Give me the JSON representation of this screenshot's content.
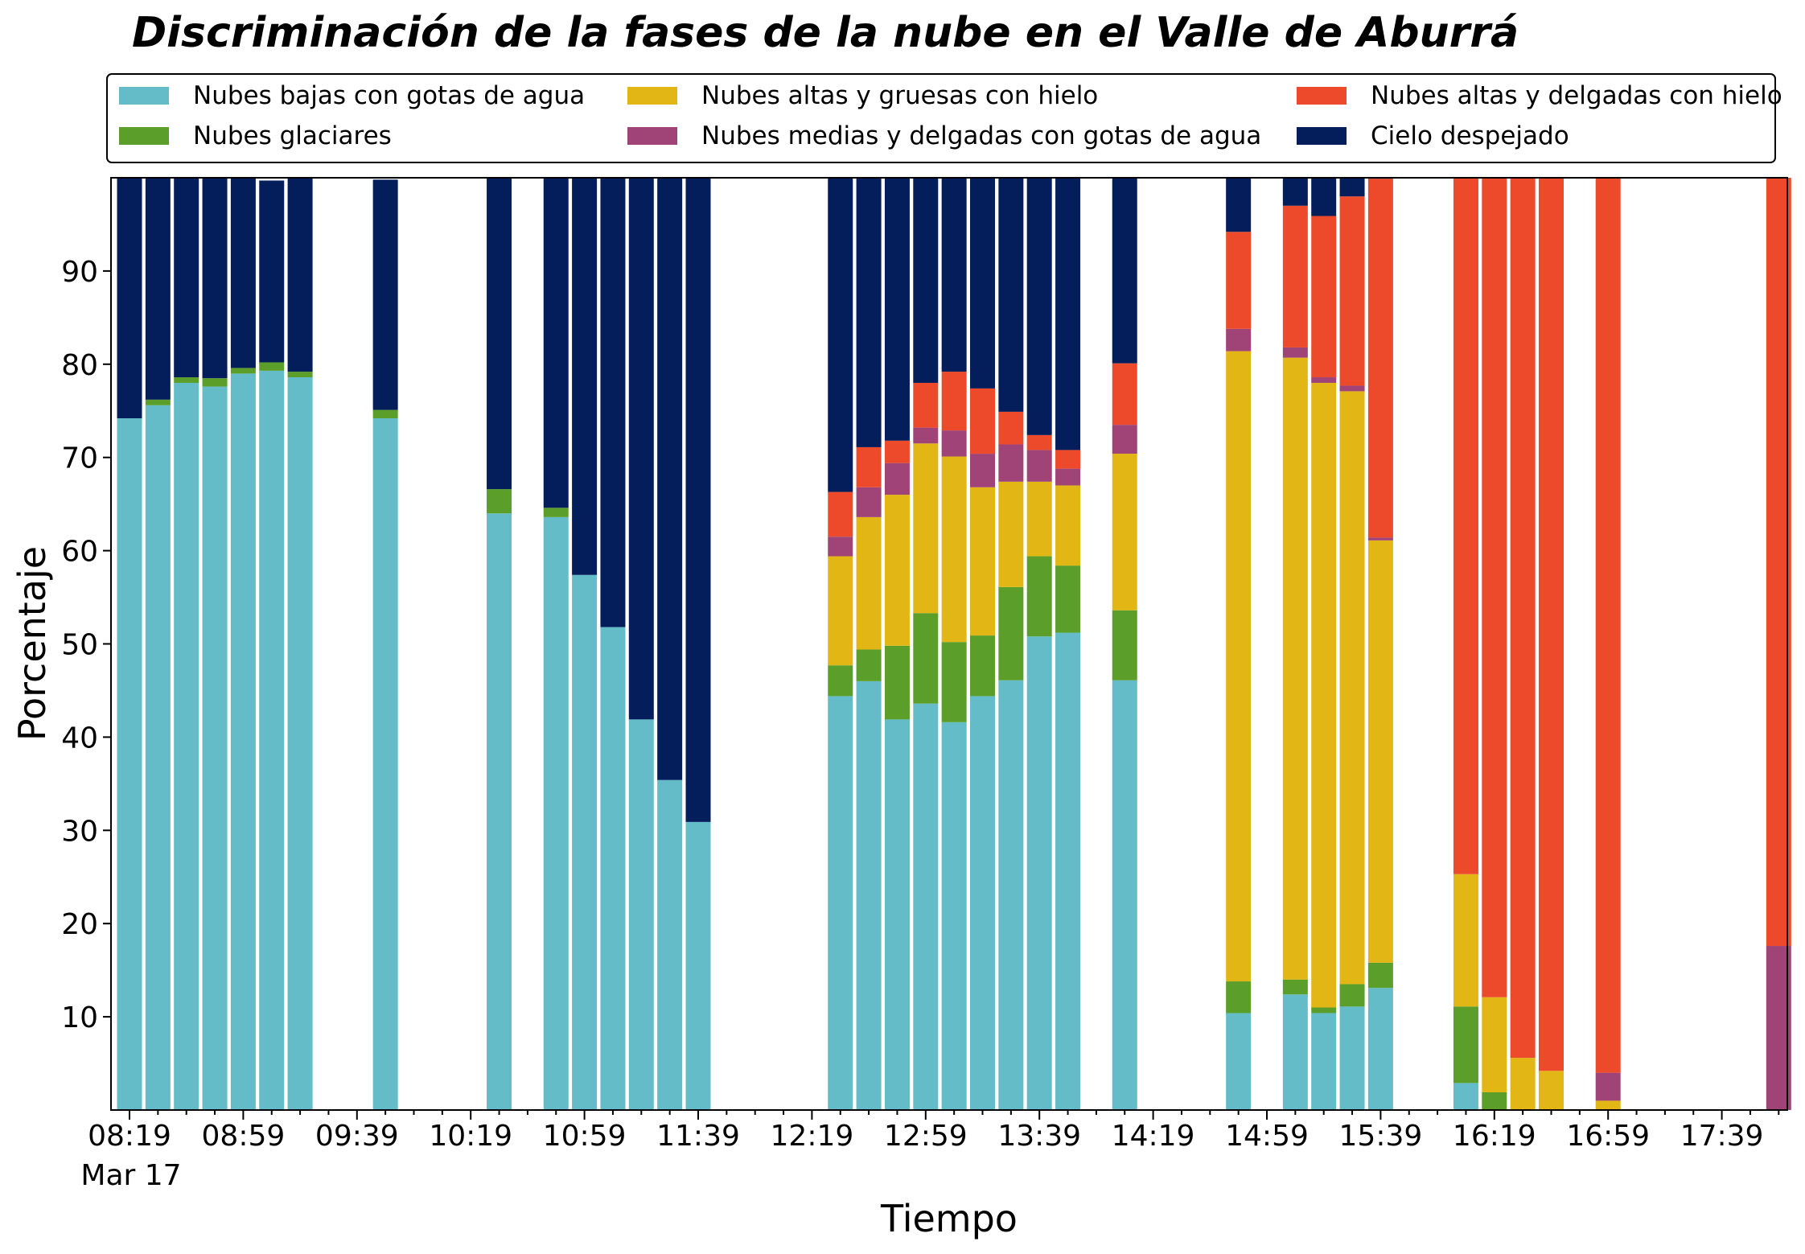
{
  "chart_data": {
    "type": "bar",
    "stacked": true,
    "title": "Discriminación de la fases de la nube en el Valle de Aburrá",
    "xlabel": "Tiempo",
    "ylabel": "Porcentaje",
    "ylim": [
      0,
      100
    ],
    "yticks": [
      10,
      20,
      30,
      40,
      50,
      60,
      70,
      80,
      90
    ],
    "x_tick_labels": [
      "08:19",
      "08:59",
      "09:39",
      "10:19",
      "10:59",
      "11:39",
      "12:19",
      "12:59",
      "13:39",
      "14:19",
      "14:59",
      "15:39",
      "16:19",
      "16:59",
      "17:39"
    ],
    "x_date_label": "Mar 17",
    "legend_position": "top",
    "categories": [
      "08:19",
      "08:29",
      "08:39",
      "08:49",
      "08:59",
      "09:09",
      "09:19",
      "09:29",
      "09:39",
      "09:49",
      "09:59",
      "10:09",
      "10:19",
      "10:29",
      "10:39",
      "10:49",
      "10:59",
      "11:09",
      "11:19",
      "11:29",
      "11:39",
      "11:49",
      "11:59",
      "12:09",
      "12:19",
      "12:29",
      "12:39",
      "12:49",
      "12:59",
      "13:09",
      "13:19",
      "13:29",
      "13:39",
      "13:49",
      "13:59",
      "14:09",
      "14:19",
      "14:29",
      "14:39",
      "14:49",
      "14:59",
      "15:09",
      "15:19",
      "15:29",
      "15:39",
      "15:49",
      "15:59",
      "16:09",
      "16:19",
      "16:29",
      "16:39",
      "16:49",
      "16:59",
      "17:09",
      "17:19",
      "17:29",
      "17:39",
      "17:49",
      "17:59"
    ],
    "series": [
      {
        "name": "Nubes bajas con gotas de agua",
        "color": "#64bcc8",
        "values": [
          74.2,
          75.6,
          78,
          77.6,
          79,
          79.3,
          78.6,
          null,
          null,
          74.2,
          null,
          null,
          null,
          64,
          null,
          63.6,
          57.4,
          51.8,
          41.9,
          35.4,
          30.9,
          null,
          null,
          null,
          null,
          44.4,
          46,
          41.9,
          43.6,
          41.6,
          44.4,
          46.1,
          50.8,
          51.2,
          null,
          46.1,
          null,
          null,
          null,
          10.4,
          null,
          12.4,
          10.4,
          11.1,
          13.1,
          null,
          null,
          2.9,
          0,
          0,
          0,
          null,
          0,
          null,
          null,
          null,
          null,
          null,
          0
        ]
      },
      {
        "name": "Nubes glaciares",
        "color": "#5b9e2a",
        "values": [
          0,
          0.6,
          0.6,
          0.9,
          0.6,
          0.9,
          0.6,
          null,
          null,
          0.9,
          null,
          null,
          null,
          2.6,
          null,
          1,
          0,
          0,
          0,
          0,
          0,
          null,
          null,
          null,
          null,
          3.3,
          3.4,
          7.9,
          9.7,
          8.6,
          6.5,
          10,
          8.6,
          7.2,
          null,
          7.5,
          null,
          null,
          null,
          3.4,
          null,
          1.6,
          0.6,
          2.4,
          2.7,
          null,
          null,
          8.2,
          1.9,
          0,
          0,
          null,
          0,
          null,
          null,
          null,
          null,
          null,
          0
        ]
      },
      {
        "name": "Nubes altas y gruesas con hielo",
        "color": "#e2b614",
        "values": [
          0,
          0,
          0,
          0,
          0,
          0,
          0,
          null,
          null,
          0,
          null,
          null,
          null,
          0,
          null,
          0,
          0,
          0,
          0,
          0,
          0,
          null,
          null,
          null,
          null,
          11.7,
          14.2,
          16.2,
          18.2,
          19.9,
          15.9,
          11.3,
          8,
          8.6,
          null,
          16.8,
          null,
          null,
          null,
          67.6,
          null,
          66.7,
          67,
          63.6,
          45.3,
          null,
          null,
          14.2,
          10.2,
          5.6,
          4.2,
          null,
          1,
          null,
          null,
          null,
          null,
          null,
          0
        ]
      },
      {
        "name": "Nubes medias y delgadas con gotas de agua",
        "color": "#a04478",
        "values": [
          0,
          0,
          0,
          0,
          0,
          0,
          0,
          null,
          null,
          0,
          null,
          null,
          null,
          0,
          null,
          0,
          0,
          0,
          0,
          0,
          0,
          null,
          null,
          null,
          null,
          2.1,
          3.2,
          3.4,
          1.7,
          2.8,
          3.6,
          4,
          3.4,
          1.8,
          null,
          3.1,
          null,
          null,
          null,
          2.4,
          null,
          1.1,
          0.6,
          0.6,
          0.3,
          null,
          null,
          0,
          0,
          0,
          0,
          null,
          3,
          null,
          null,
          null,
          null,
          null,
          17.6
        ]
      },
      {
        "name": "Nubes altas y delgadas con hielo",
        "color": "#ec4a2a",
        "values": [
          0,
          0,
          0,
          0,
          0,
          0,
          0,
          null,
          null,
          0,
          null,
          null,
          null,
          0,
          null,
          0,
          0,
          0,
          0,
          0,
          0,
          null,
          null,
          null,
          null,
          4.8,
          4.3,
          2.4,
          4.8,
          6.3,
          7,
          3.5,
          1.6,
          2,
          null,
          6.6,
          null,
          null,
          null,
          10.4,
          null,
          15.2,
          17.3,
          20.3,
          38.5,
          null,
          null,
          74.7,
          87.9,
          94.4,
          95.8,
          null,
          96,
          null,
          null,
          null,
          null,
          null,
          82.4
        ]
      },
      {
        "name": "Cielo despejado",
        "color": "#041e5c",
        "values": [
          25.8,
          23.8,
          21.4,
          21.5,
          20.4,
          19.5,
          20.8,
          null,
          null,
          24.7,
          null,
          null,
          null,
          33.4,
          null,
          35.4,
          42.6,
          48.2,
          58.1,
          64.6,
          69.1,
          null,
          null,
          null,
          null,
          33.7,
          28.9,
          28.2,
          22,
          20.8,
          22.6,
          25.1,
          27.6,
          29.2,
          null,
          19.9,
          null,
          null,
          null,
          5.8,
          null,
          3,
          4.1,
          2,
          0.1,
          null,
          null,
          0,
          0,
          0,
          0,
          null,
          0,
          null,
          null,
          null,
          null,
          null,
          0
        ]
      }
    ]
  }
}
